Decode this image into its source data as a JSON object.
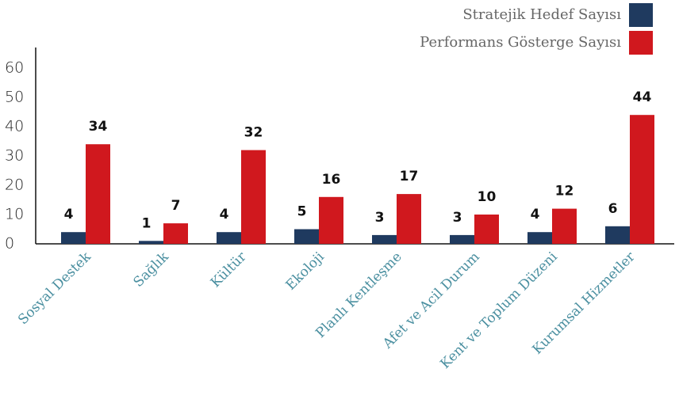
{
  "chart_data": {
    "type": "bar",
    "categories": [
      "Sosyal Destek",
      "Sağlık",
      "Kültür",
      "Ekoloji",
      "Planlı Kentleşme",
      "Afet ve Acil Durum",
      "Kent ve Toplum Düzeni",
      "Kurumsal Hizmetler"
    ],
    "series": [
      {
        "name": "Stratejik Hedef Sayısı",
        "color": "#1f3a5f",
        "values": [
          4,
          1,
          4,
          5,
          3,
          3,
          4,
          6
        ]
      },
      {
        "name": "Performans Gösterge Sayısı",
        "color": "#d0181e",
        "values": [
          34,
          7,
          32,
          16,
          17,
          10,
          12,
          44
        ]
      }
    ],
    "ylim": [
      0,
      60
    ],
    "yticks": [
      0,
      10,
      20,
      30,
      40,
      50,
      60
    ],
    "legend": "top-right"
  }
}
